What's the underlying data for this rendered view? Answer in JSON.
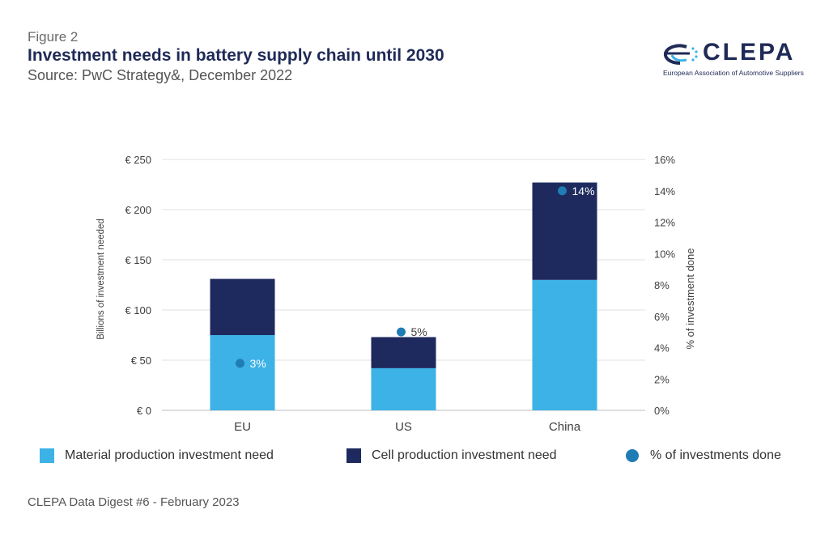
{
  "header": {
    "figure_label": "Figure 2",
    "title": "Investment needs in battery supply chain until 2030",
    "source": "Source: PwC Strategy&, December 2022"
  },
  "logo": {
    "wordmark": "CLEPA",
    "tagline": "European Association of Automotive Suppliers"
  },
  "colors": {
    "material": "#3db2e6",
    "cell": "#1e2a5e",
    "dot": "#1f7cb5",
    "grid": "#e2e2e2"
  },
  "chart_data": {
    "type": "bar",
    "stacked": true,
    "categories": [
      "EU",
      "US",
      "China"
    ],
    "series": [
      {
        "name": "Material production investment need",
        "values": [
          75,
          42,
          130
        ]
      },
      {
        "name": "Cell production investment need",
        "values": [
          56,
          31,
          97
        ]
      }
    ],
    "secondary_series": {
      "name": "% of investments done",
      "type": "scatter",
      "values": [
        3,
        5,
        14
      ],
      "labels": [
        "3%",
        "5%",
        "14%"
      ]
    },
    "ylabel": "Billions of investment needed",
    "ylim": [
      0,
      250
    ],
    "yticks": [
      0,
      50,
      100,
      150,
      200,
      250
    ],
    "ytick_labels": [
      "€ 0",
      "€ 50",
      "€ 100",
      "€ 150",
      "€ 200",
      "€ 250"
    ],
    "y2label": "% of investment done",
    "y2lim": [
      0,
      16
    ],
    "y2ticks": [
      0,
      2,
      4,
      6,
      8,
      10,
      12,
      14,
      16
    ],
    "y2tick_labels": [
      "0%",
      "2%",
      "4%",
      "6%",
      "8%",
      "10%",
      "12%",
      "14%",
      "16%"
    ],
    "grid": true,
    "legend_position": "bottom"
  },
  "legend": {
    "material": "Material production investment need",
    "cell": "Cell production investment need",
    "dots": "% of investments done"
  },
  "footer": "CLEPA Data Digest #6 - February 2023"
}
